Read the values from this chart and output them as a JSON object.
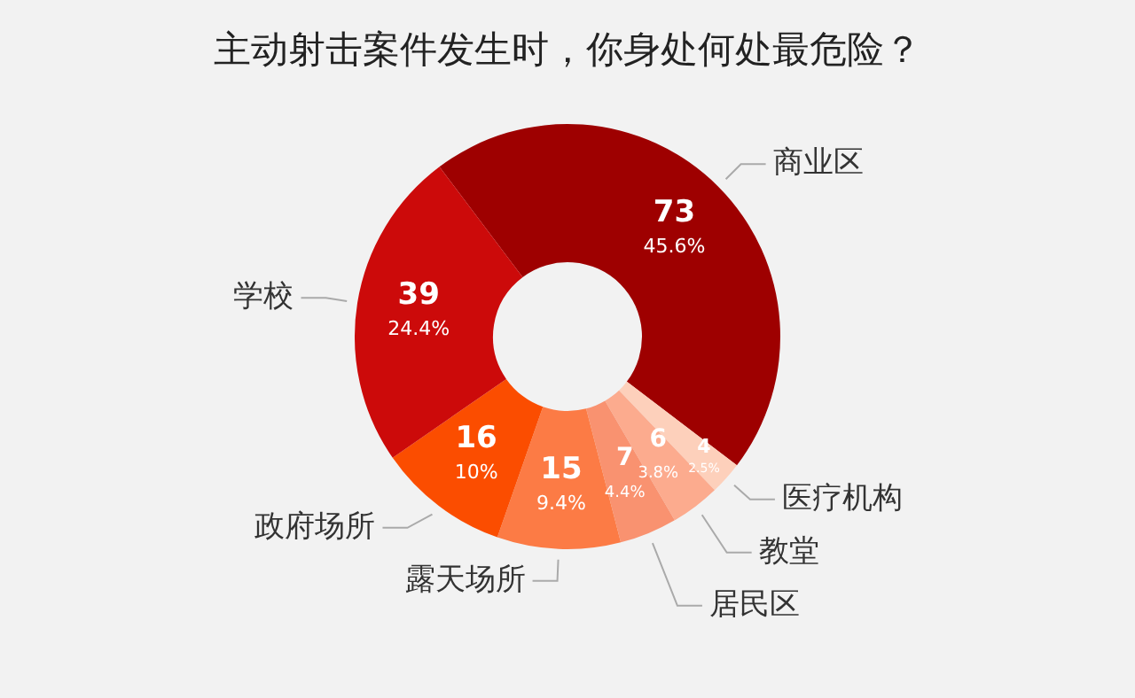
{
  "chart_data": {
    "type": "donut",
    "title": "主动射击案件发生时，你身处何处最危险？",
    "categories": [
      "商业区",
      "医疗机构",
      "教堂",
      "居民区",
      "露天场所",
      "政府场所",
      "学校"
    ],
    "values": [
      73,
      4,
      6,
      7,
      15,
      16,
      39
    ],
    "value_labels": [
      "73\n45.6%",
      "4\n2.5%",
      "6\n3.8%",
      "7\n4.4%",
      "15\n9.4%",
      "16\n10%",
      "39\n24.4%"
    ],
    "colors": [
      "#9e0000",
      "#fdd0bb",
      "#fcab8e",
      "#f99270",
      "#fc7b45",
      "#fb4d00",
      "#cc0a0a"
    ],
    "legend": false
  }
}
